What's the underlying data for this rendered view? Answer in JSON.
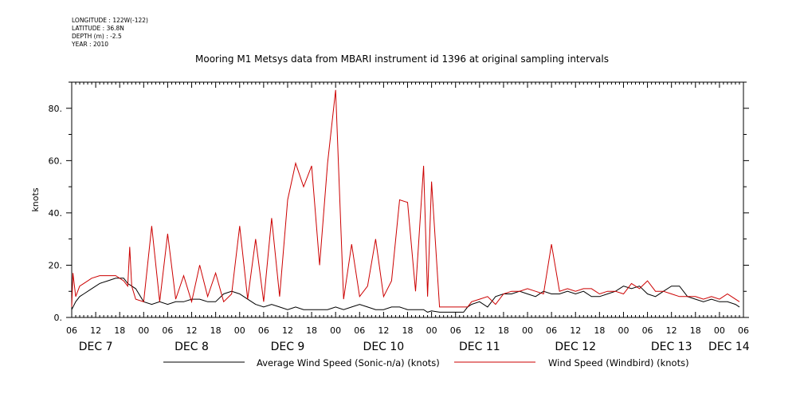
{
  "header": {
    "info_lines": [
      "LONGITUDE : 122W(-122)",
      "LATITUDE : 36.8N",
      "DEPTH (m) : -2.5",
      "YEAR : 2010"
    ],
    "title": "Mooring M1 Metsys data from MBARI instrument id 1396 at original sampling intervals"
  },
  "colors": {
    "series_average": "#000000",
    "series_windbird": "#cc0000",
    "axis": "#000000"
  },
  "chart_data": {
    "type": "line",
    "title": "Mooring M1 Metsys data from MBARI instrument id 1396 at original sampling intervals",
    "ylabel": "knots",
    "xlabel": "",
    "ylim": [
      0,
      90
    ],
    "y_ticks": [
      0,
      20,
      40,
      60,
      80
    ],
    "y_tick_labels": [
      "0.",
      "20.",
      "40.",
      "60.",
      "80."
    ],
    "xlim_hours": [
      0,
      168
    ],
    "x_tick_labels": [
      "06",
      "12",
      "18",
      "00",
      "06",
      "12",
      "18",
      "00",
      "06",
      "12",
      "18",
      "00",
      "06",
      "12",
      "18",
      "00",
      "06",
      "12",
      "18",
      "00",
      "06",
      "12",
      "18",
      "00",
      "06",
      "12",
      "18",
      "00",
      "06"
    ],
    "x_day_labels": [
      "DEC 7",
      "DEC 8",
      "DEC 9",
      "DEC 10",
      "DEC 11",
      "DEC 12",
      "DEC 13",
      "DEC 14"
    ],
    "legend": [
      "Average Wind Speed (Sonic-n/a) (knots)",
      "Wind Speed (Windbird) (knots)"
    ],
    "legend_position": "bottom",
    "series": [
      {
        "name": "Average Wind Speed (Sonic-n/a) (knots)",
        "x": [
          0,
          1,
          2,
          3,
          5,
          7,
          9,
          11,
          13,
          14,
          16,
          18,
          20,
          22,
          24,
          26,
          28,
          30,
          32,
          34,
          36,
          38,
          40,
          42,
          44,
          46,
          48,
          50,
          52,
          54,
          56,
          58,
          60,
          62,
          64,
          66,
          68,
          70,
          72,
          74,
          76,
          78,
          80,
          82,
          84,
          86,
          88,
          89,
          90,
          92,
          98,
          99,
          100,
          102,
          104,
          106,
          108,
          110,
          112,
          114,
          116,
          118,
          120,
          122,
          124,
          126,
          128,
          130,
          132,
          134,
          136,
          138,
          140,
          142,
          144,
          146,
          148,
          150,
          152,
          154,
          156,
          158,
          160,
          162,
          164,
          166,
          167
        ],
        "values": [
          3,
          6,
          8,
          9,
          11,
          13,
          14,
          15,
          15,
          13,
          11,
          6,
          5,
          6,
          5,
          6,
          6,
          7,
          7,
          6,
          6,
          9,
          10,
          9,
          7,
          5,
          4,
          5,
          4,
          3,
          4,
          3,
          3,
          3,
          3,
          4,
          3,
          4,
          5,
          4,
          3,
          3,
          4,
          4,
          3,
          3,
          3,
          2,
          2.5,
          2,
          2,
          4,
          5,
          6,
          4,
          8,
          9,
          9,
          10,
          9,
          8,
          10,
          9,
          9,
          10,
          9,
          10,
          8,
          8,
          9,
          10,
          12,
          11,
          12,
          9,
          8,
          10,
          12,
          12,
          8,
          7,
          6,
          7,
          6,
          6,
          5,
          4
        ]
      },
      {
        "name": "Wind Speed (Windbird) (knots)",
        "x": [
          0,
          0.3,
          1,
          2,
          3,
          5,
          7,
          9,
          11,
          13,
          14,
          14.5,
          15,
          16,
          18,
          20,
          22,
          24,
          26,
          28,
          30,
          32,
          34,
          36,
          38,
          40,
          42,
          44,
          46,
          48,
          50,
          52,
          54,
          56,
          58,
          60,
          62,
          64,
          66,
          68,
          70,
          72,
          74,
          76,
          78,
          80,
          82,
          84,
          86,
          88,
          89,
          90,
          92,
          98,
          99,
          100,
          102,
          104,
          106,
          108,
          110,
          112,
          114,
          116,
          118,
          120,
          122,
          124,
          126,
          128,
          130,
          132,
          134,
          136,
          138,
          140,
          142,
          144,
          146,
          148,
          150,
          152,
          154,
          156,
          158,
          160,
          162,
          164,
          166,
          167
        ],
        "values": [
          4,
          17,
          8,
          12,
          13,
          15,
          16,
          16,
          16,
          14,
          12,
          27,
          12,
          7,
          6,
          35,
          6,
          32,
          7,
          16,
          6,
          20,
          8,
          17,
          6,
          9,
          35,
          7,
          30,
          6,
          38,
          8,
          45,
          59,
          50,
          58,
          20,
          59,
          87,
          7,
          28,
          8,
          12,
          30,
          8,
          14,
          45,
          44,
          10,
          58,
          8,
          52,
          4,
          4,
          4,
          6,
          7,
          8,
          5,
          9,
          10,
          10,
          11,
          10,
          9,
          28,
          10,
          11,
          10,
          11,
          11,
          9,
          10,
          10,
          9,
          13,
          11,
          14,
          10,
          10,
          9,
          8,
          8,
          8,
          7,
          8,
          7,
          9,
          7,
          6
        ]
      }
    ]
  }
}
